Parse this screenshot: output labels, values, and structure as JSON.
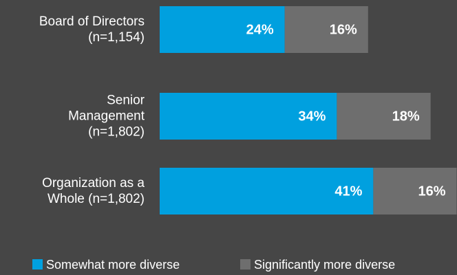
{
  "chart_data": {
    "type": "stacked_barh",
    "categories": [
      "Board of Directors\n(n=1,154)",
      "Senior\nManagement\n(n=1,802)",
      "Organization as a\nWhole (n=1,802)"
    ],
    "series": [
      {
        "name": "Somewhat more diverse",
        "color": "#00a0df",
        "values": [
          24,
          34,
          41
        ],
        "value_labels": [
          "24%",
          "34%",
          "41%"
        ]
      },
      {
        "name": "Significantly more diverse",
        "color": "#6e6e6e",
        "values": [
          16,
          18,
          16
        ],
        "value_labels": [
          "16%",
          "18%",
          "16%"
        ]
      }
    ],
    "xlim": [
      0,
      57
    ],
    "legend": "bottom"
  }
}
